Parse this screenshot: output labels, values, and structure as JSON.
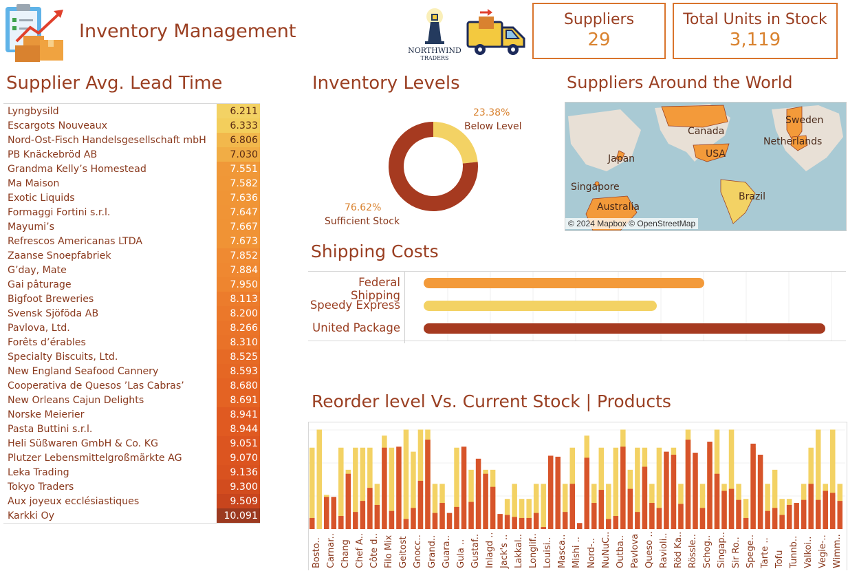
{
  "header": {
    "title": "Inventory Management",
    "logo_text": [
      "NORTHWIND",
      "TRADERS"
    ]
  },
  "kpis": [
    {
      "label": "Suppliers",
      "value": "29"
    },
    {
      "label": "Total Units in Stock",
      "value": "3,119"
    }
  ],
  "lead_time": {
    "title": "Supplier Avg. Lead Time",
    "rows": [
      {
        "name": "Lyngbysild",
        "value": "6.211",
        "color": "#f3d264"
      },
      {
        "name": "Escargots Nouveaux",
        "value": "6.333",
        "color": "#f3ce5c"
      },
      {
        "name": "Nord-Ost-Fisch Handelsgesellschaft mbH",
        "value": "6.806",
        "color": "#f2b84c"
      },
      {
        "name": "PB Knäckebröd AB",
        "value": "7.030",
        "color": "#f1ad45"
      },
      {
        "name": "Grandma Kelly’s Homestead",
        "value": "7.551",
        "color": "#f09838"
      },
      {
        "name": "Ma Maison",
        "value": "7.582",
        "color": "#f09737"
      },
      {
        "name": "Exotic Liquids",
        "value": "7.636",
        "color": "#f09536"
      },
      {
        "name": "Formaggi Fortini s.r.l.",
        "value": "7.647",
        "color": "#f09436"
      },
      {
        "name": "Mayumi’s",
        "value": "7.667",
        "color": "#f09335"
      },
      {
        "name": "Refrescos Americanas LTDA",
        "value": "7.673",
        "color": "#f09335"
      },
      {
        "name": "Zaanse Snoepfabriek",
        "value": "7.852",
        "color": "#ef8a32"
      },
      {
        "name": "G’day, Mate",
        "value": "7.884",
        "color": "#ef8831"
      },
      {
        "name": "Gai pâturage",
        "value": "7.950",
        "color": "#ee852f"
      },
      {
        "name": "Bigfoot Breweries",
        "value": "8.113",
        "color": "#ec7c2c"
      },
      {
        "name": "Svensk Sjöföda AB",
        "value": "8.200",
        "color": "#eb782a"
      },
      {
        "name": "Pavlova, Ltd.",
        "value": "8.266",
        "color": "#ea7429"
      },
      {
        "name": "Forêts d’érables",
        "value": "8.310",
        "color": "#e97228"
      },
      {
        "name": "Specialty Biscuits, Ltd.",
        "value": "8.525",
        "color": "#e66a25"
      },
      {
        "name": "New England Seafood Cannery",
        "value": "8.593",
        "color": "#e56724"
      },
      {
        "name": "Cooperativa de Quesos ’Las Cabras’",
        "value": "8.680",
        "color": "#e46323"
      },
      {
        "name": "New Orleans Cajun Delights",
        "value": "8.691",
        "color": "#e46323"
      },
      {
        "name": "Norske Meierier",
        "value": "8.941",
        "color": "#e05a21"
      },
      {
        "name": "Pasta Buttini s.r.l.",
        "value": "8.944",
        "color": "#e05a21"
      },
      {
        "name": "Heli Süßwaren GmbH & Co. KG",
        "value": "9.051",
        "color": "#dc5520"
      },
      {
        "name": "Plutzer Lebensmittelgroßmärkte AG",
        "value": "9.070",
        "color": "#dc5520"
      },
      {
        "name": "Leka Trading",
        "value": "9.136",
        "color": "#d9521f"
      },
      {
        "name": "Tokyo Traders",
        "value": "9.300",
        "color": "#d24c1e"
      },
      {
        "name": "Aux joyeux ecclésiastiques",
        "value": "9.509",
        "color": "#c8451d"
      },
      {
        "name": "Karkki Oy",
        "value": "10.091",
        "color": "#9c3a20"
      }
    ]
  },
  "inventory_levels": {
    "title": "Inventory Levels",
    "below_pct": "23.38%",
    "below_label": "Below Level",
    "sufficient_pct": "76.62%",
    "sufficient_label": "Sufficient Stock",
    "below_value": 23.38,
    "sufficient_value": 76.62,
    "colors": {
      "below": "#f3d264",
      "sufficient": "#a63a20"
    }
  },
  "map": {
    "title": "Suppliers Around the World",
    "labels": [
      "Canada",
      "USA",
      "Japan",
      "Singapore",
      "Australia",
      "Brazil",
      "Sweden",
      "Netherlands"
    ],
    "attribution": "© 2024 Mapbox © OpenStreetMap"
  },
  "shipping": {
    "title": "Shipping Costs",
    "rows": [
      {
        "label": "Federal Shipping",
        "value": 1,
        "color": "#f39a3a"
      },
      {
        "label": "Speedy Express",
        "value": 0.83,
        "color": "#f3d264"
      },
      {
        "label": "United Package",
        "value": 1.43,
        "color": "#a63a20"
      }
    ]
  },
  "chart_data": {
    "type": "bar",
    "title": "Reorder level Vs. Current Stock | Products",
    "categories": [
      "Bosto..",
      "Carnar..",
      "Chang",
      "Chef A..",
      "Côte d..",
      "Filo Mix",
      "Geitost",
      "Gnocc..",
      "Grand..",
      "Guara..",
      "Gula ..",
      "Gustaf..",
      "Inlagd ..",
      "Jack's ..",
      "Lakkal..",
      "Longlif..",
      "Louisi..",
      "Masca..",
      "Mishi ..",
      "Nord-..",
      "NuNuC..",
      "Outba..",
      "Pavlova",
      "Queso ..",
      "Ravioli..",
      "Röd Ka..",
      "Rössle..",
      "Schog..",
      "Singap..",
      "Sir Ro..",
      "Spege..",
      "Tarte ..",
      "Tofu",
      "Tunnb..",
      "Valkoi..",
      "Vegie-..",
      "Wimm.."
    ],
    "series": [
      {
        "name": "Reorder level",
        "color": "#f3d264"
      },
      {
        "name": "Current Stock",
        "color": "#d7542a"
      }
    ],
    "bars": [
      [
        0.81,
        0.11
      ],
      [
        0.99,
        0
      ],
      [
        0.34,
        0.32
      ],
      [
        0,
        0.32
      ],
      [
        0.81,
        0.13
      ],
      [
        0.59,
        0.55
      ],
      [
        0.81,
        0.17
      ],
      [
        0.81,
        0.28
      ],
      [
        0.81,
        0.41
      ],
      [
        0.45,
        0.24
      ],
      [
        0.93,
        0.81
      ],
      [
        0.81,
        0.18
      ],
      [
        0,
        0.82
      ],
      [
        0.99,
        0.1
      ],
      [
        0.77,
        0.21
      ],
      [
        0.99,
        0.48
      ],
      [
        0.99,
        0.89
      ],
      [
        0.45,
        0.16
      ],
      [
        0.45,
        0.26
      ],
      [
        0,
        0.16
      ],
      [
        0.81,
        0.22
      ],
      [
        0,
        0.82
      ],
      [
        0.59,
        0.27
      ],
      [
        0.45,
        0.7
      ],
      [
        0.59,
        0.55
      ],
      [
        0.59,
        0.42
      ],
      [
        0,
        0.15
      ],
      [
        0.3,
        0.14
      ],
      [
        0.45,
        0.12
      ],
      [
        0.3,
        0.11
      ],
      [
        0.3,
        0.11
      ],
      [
        0.45,
        0.16
      ],
      [
        0.45,
        0.02
      ],
      [
        0,
        0.73
      ],
      [
        0,
        0.72
      ],
      [
        0.45,
        0.17
      ],
      [
        0.81,
        0.45
      ],
      [
        0,
        0.06
      ],
      [
        0.93,
        0.71
      ],
      [
        0.45,
        0.26
      ],
      [
        0.81,
        0.39
      ],
      [
        0.45,
        0.1
      ],
      [
        0.81,
        0.13
      ],
      [
        0.99,
        0.82
      ],
      [
        0.59,
        0.4
      ],
      [
        0.81,
        0.17
      ],
      [
        0.81,
        0.62
      ],
      [
        0.45,
        0.26
      ],
      [
        0.81,
        0.21
      ],
      [
        0.59,
        0.77
      ],
      [
        0.81,
        0.74
      ],
      [
        0.45,
        0.25
      ],
      [
        0.99,
        0.89
      ],
      [
        0.59,
        0.76
      ],
      [
        0.45,
        0.21
      ],
      [
        0.81,
        0.87
      ],
      [
        0.99,
        0.55
      ],
      [
        0.45,
        0.38
      ],
      [
        0.99,
        0.4
      ],
      [
        0.45,
        0.29
      ],
      [
        0.3,
        0.11
      ],
      [
        0.81,
        0.85
      ],
      [
        0.59,
        0.74
      ],
      [
        0.45,
        0.18
      ],
      [
        0.59,
        0.21
      ],
      [
        0.3,
        0.14
      ],
      [
        0.3,
        0.24
      ],
      [
        0,
        0.26
      ],
      [
        0.45,
        0.29
      ],
      [
        0.81,
        0.45
      ],
      [
        0.99,
        0.29
      ],
      [
        0.45,
        0.38
      ],
      [
        0.99,
        0.36
      ],
      [
        0.45,
        0.28
      ]
    ],
    "ylim": [
      0,
      1
    ]
  }
}
